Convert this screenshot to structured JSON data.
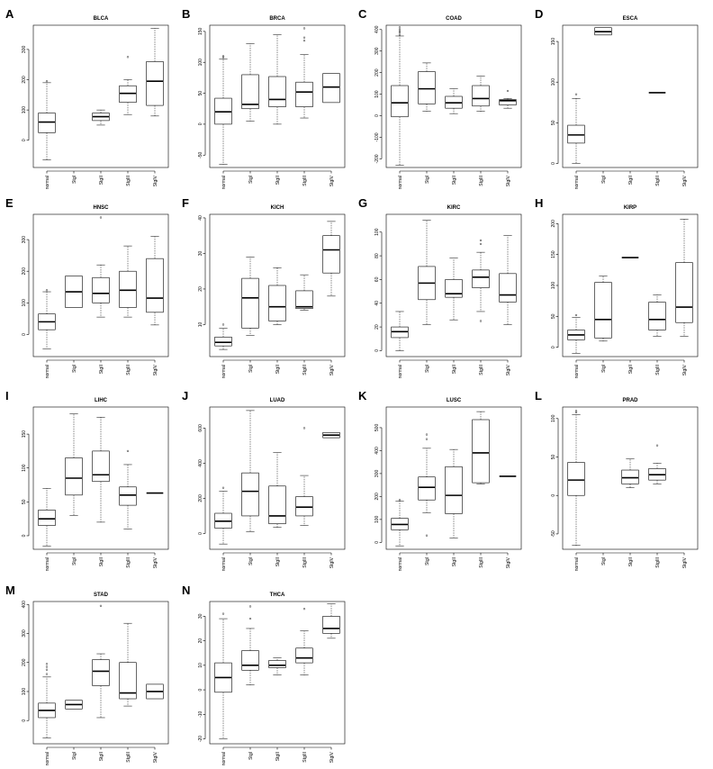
{
  "chart_data": [
    {
      "type": "box",
      "letter": "A",
      "title": "BLCA",
      "categories": [
        "normal",
        "StgI",
        "StgII",
        "StgIII",
        "StgIV"
      ],
      "ylim": [
        -90,
        380
      ],
      "yticks": [
        0,
        100,
        200,
        300
      ],
      "boxes": [
        {
          "min": -65,
          "q1": 25,
          "median": 60,
          "q3": 90,
          "max": 190,
          "outliers": [
            195
          ]
        },
        null,
        {
          "min": 50,
          "q1": 65,
          "median": 78,
          "q3": 90,
          "max": 100,
          "outliers": []
        },
        {
          "min": 85,
          "q1": 125,
          "median": 155,
          "q3": 180,
          "max": 200,
          "outliers": [
            275
          ]
        },
        {
          "min": 80,
          "q1": 115,
          "median": 195,
          "q3": 260,
          "max": 370,
          "outliers": []
        }
      ]
    },
    {
      "type": "box",
      "letter": "B",
      "title": "BRCA",
      "categories": [
        "normal",
        "StgI",
        "StgII",
        "StgIII",
        "StgIV"
      ],
      "ylim": [
        -70,
        160
      ],
      "yticks": [
        -50,
        0,
        50,
        100,
        150
      ],
      "boxes": [
        {
          "min": -65,
          "q1": 0,
          "median": 20,
          "q3": 42,
          "max": 105,
          "outliers": [
            108,
            110
          ]
        },
        {
          "min": 5,
          "q1": 25,
          "median": 32,
          "q3": 80,
          "max": 130,
          "outliers": []
        },
        {
          "min": 0,
          "q1": 28,
          "median": 40,
          "q3": 77,
          "max": 145,
          "outliers": []
        },
        {
          "min": 10,
          "q1": 28,
          "median": 52,
          "q3": 68,
          "max": 113,
          "outliers": [
            135,
            140,
            155
          ]
        },
        {
          "min": 35,
          "q1": 35,
          "median": 60,
          "q3": 82,
          "max": 82,
          "outliers": []
        }
      ]
    },
    {
      "type": "box",
      "letter": "C",
      "title": "COAD",
      "categories": [
        "normal",
        "StgI",
        "StgII",
        "StgIII",
        "StgIV"
      ],
      "ylim": [
        -240,
        420
      ],
      "yticks": [
        -200,
        -100,
        0,
        100,
        200,
        300,
        400
      ],
      "boxes": [
        {
          "min": -230,
          "q1": -5,
          "median": 60,
          "q3": 140,
          "max": 370,
          "outliers": [
            375,
            385,
            392,
            400,
            410
          ]
        },
        {
          "min": 20,
          "q1": 55,
          "median": 125,
          "q3": 205,
          "max": 245,
          "outliers": []
        },
        {
          "min": 10,
          "q1": 35,
          "median": 60,
          "q3": 90,
          "max": 125,
          "outliers": []
        },
        {
          "min": 20,
          "q1": 45,
          "median": 80,
          "q3": 140,
          "max": 185,
          "outliers": []
        },
        {
          "min": 35,
          "q1": 50,
          "median": 70,
          "q3": 75,
          "max": 80,
          "outliers": [
            115
          ]
        }
      ]
    },
    {
      "type": "box",
      "letter": "D",
      "title": "ESCA",
      "categories": [
        "normal",
        "StgI",
        "StgII",
        "StgIII",
        "StgIV"
      ],
      "ylim": [
        -5,
        170
      ],
      "yticks": [
        0,
        50,
        100,
        150
      ],
      "boxes": [
        {
          "min": 0,
          "q1": 25,
          "median": 35,
          "q3": 47,
          "max": 80,
          "outliers": [
            85
          ]
        },
        {
          "min": 158,
          "q1": 158,
          "median": 162,
          "q3": 167,
          "max": 167,
          "outliers": []
        },
        null,
        {
          "min": 87,
          "q1": 87,
          "median": 87,
          "q3": 87,
          "max": 87,
          "outliers": []
        },
        null
      ]
    },
    {
      "type": "box",
      "letter": "E",
      "title": "HNSC",
      "categories": [
        "normal",
        "StgI",
        "StgII",
        "StgIII",
        "StgIV"
      ],
      "ylim": [
        -70,
        380
      ],
      "yticks": [
        0,
        100,
        200,
        300
      ],
      "boxes": [
        {
          "min": -45,
          "q1": 15,
          "median": 40,
          "q3": 65,
          "max": 135,
          "outliers": [
            140
          ]
        },
        {
          "min": 85,
          "q1": 85,
          "median": 135,
          "q3": 185,
          "max": 185,
          "outliers": []
        },
        {
          "min": 55,
          "q1": 100,
          "median": 130,
          "q3": 180,
          "max": 220,
          "outliers": [
            370
          ]
        },
        {
          "min": 55,
          "q1": 85,
          "median": 140,
          "q3": 200,
          "max": 280,
          "outliers": []
        },
        {
          "min": 30,
          "q1": 70,
          "median": 115,
          "q3": 240,
          "max": 310,
          "outliers": []
        }
      ]
    },
    {
      "type": "box",
      "letter": "F",
      "title": "KICH",
      "categories": [
        "normal",
        "StgI",
        "StgII",
        "StgIII",
        "StgIV"
      ],
      "ylim": [
        1,
        41
      ],
      "yticks": [
        10,
        20,
        30,
        40
      ],
      "boxes": [
        {
          "min": 3,
          "q1": 4,
          "median": 5,
          "q3": 6.5,
          "max": 9,
          "outliers": [
            10
          ]
        },
        {
          "min": 7,
          "q1": 9,
          "median": 17.5,
          "q3": 23,
          "max": 29,
          "outliers": []
        },
        {
          "min": 10,
          "q1": 11,
          "median": 15,
          "q3": 21,
          "max": 26,
          "outliers": []
        },
        {
          "min": 14,
          "q1": 14.5,
          "median": 15,
          "q3": 19.5,
          "max": 24,
          "outliers": []
        },
        {
          "min": 18,
          "q1": 24.5,
          "median": 31,
          "q3": 35,
          "max": 39,
          "outliers": []
        }
      ]
    },
    {
      "type": "box",
      "letter": "G",
      "title": "KIRC",
      "categories": [
        "normal",
        "StgI",
        "StgII",
        "StgIII",
        "StgIV"
      ],
      "ylim": [
        -5,
        115
      ],
      "yticks": [
        0,
        20,
        40,
        60,
        80,
        100
      ],
      "boxes": [
        {
          "min": 0,
          "q1": 11,
          "median": 16,
          "q3": 20,
          "max": 33,
          "outliers": []
        },
        {
          "min": 22,
          "q1": 43,
          "median": 57,
          "q3": 71,
          "max": 110,
          "outliers": []
        },
        {
          "min": 26,
          "q1": 45,
          "median": 48,
          "q3": 60,
          "max": 78,
          "outliers": []
        },
        {
          "min": 33,
          "q1": 53,
          "median": 62,
          "q3": 68,
          "max": 83,
          "outliers": [
            90,
            93,
            25
          ]
        },
        {
          "min": 22,
          "q1": 41,
          "median": 47,
          "q3": 65,
          "max": 97,
          "outliers": []
        }
      ]
    },
    {
      "type": "box",
      "letter": "H",
      "title": "KIRP",
      "categories": [
        "normal",
        "StgI",
        "StgII",
        "StgIII",
        "StgIV"
      ],
      "ylim": [
        -15,
        215
      ],
      "yticks": [
        0,
        50,
        100,
        150,
        200
      ],
      "boxes": [
        {
          "min": -10,
          "q1": 12,
          "median": 20,
          "q3": 28,
          "max": 48,
          "outliers": [
            52
          ]
        },
        {
          "min": 10,
          "q1": 15,
          "median": 45,
          "q3": 105,
          "max": 115,
          "outliers": []
        },
        {
          "min": 145,
          "q1": 145,
          "median": 145,
          "q3": 145,
          "max": 145,
          "outliers": []
        },
        {
          "min": 18,
          "q1": 28,
          "median": 45,
          "q3": 73,
          "max": 85,
          "outliers": []
        },
        {
          "min": 18,
          "q1": 40,
          "median": 65,
          "q3": 137,
          "max": 207,
          "outliers": []
        }
      ]
    },
    {
      "type": "box",
      "letter": "I",
      "title": "LIHC",
      "categories": [
        "normal",
        "StgI",
        "StgII",
        "StgIII",
        "StgIV"
      ],
      "ylim": [
        -20,
        190
      ],
      "yticks": [
        0,
        50,
        100,
        150
      ],
      "boxes": [
        {
          "min": -15,
          "q1": 15,
          "median": 25,
          "q3": 38,
          "max": 70,
          "outliers": []
        },
        {
          "min": 30,
          "q1": 60,
          "median": 85,
          "q3": 115,
          "max": 180,
          "outliers": []
        },
        {
          "min": 20,
          "q1": 80,
          "median": 90,
          "q3": 125,
          "max": 175,
          "outliers": []
        },
        {
          "min": 10,
          "q1": 45,
          "median": 60,
          "q3": 72,
          "max": 105,
          "outliers": [
            125
          ]
        },
        {
          "min": 63,
          "q1": 63,
          "median": 63,
          "q3": 63,
          "max": 63,
          "outliers": []
        }
      ]
    },
    {
      "type": "box",
      "letter": "J",
      "title": "LUAD",
      "categories": [
        "normal",
        "StgI",
        "StgII",
        "StgIII",
        "StgIV"
      ],
      "ylim": [
        -90,
        720
      ],
      "yticks": [
        0,
        200,
        400,
        600
      ],
      "boxes": [
        {
          "min": -60,
          "q1": 30,
          "median": 70,
          "q3": 115,
          "max": 240,
          "outliers": [
            260
          ]
        },
        {
          "min": 10,
          "q1": 100,
          "median": 240,
          "q3": 345,
          "max": 700,
          "outliers": []
        },
        {
          "min": 35,
          "q1": 55,
          "median": 100,
          "q3": 270,
          "max": 460,
          "outliers": []
        },
        {
          "min": 45,
          "q1": 100,
          "median": 150,
          "q3": 210,
          "max": 330,
          "outliers": [
            600
          ]
        },
        {
          "min": 545,
          "q1": 545,
          "median": 560,
          "q3": 575,
          "max": 575,
          "outliers": []
        }
      ]
    },
    {
      "type": "box",
      "letter": "K",
      "title": "LUSC",
      "categories": [
        "normal",
        "StgI",
        "StgII",
        "StgIII",
        "StgIV"
      ],
      "ylim": [
        -30,
        590
      ],
      "yticks": [
        0,
        100,
        200,
        300,
        400,
        500
      ],
      "boxes": [
        {
          "min": -15,
          "q1": 55,
          "median": 78,
          "q3": 105,
          "max": 180,
          "outliers": [
            185
          ]
        },
        {
          "min": 130,
          "q1": 185,
          "median": 240,
          "q3": 285,
          "max": 410,
          "outliers": [
            30,
            450,
            470
          ]
        },
        {
          "min": 20,
          "q1": 125,
          "median": 205,
          "q3": 330,
          "max": 405,
          "outliers": []
        },
        {
          "min": 255,
          "q1": 260,
          "median": 390,
          "q3": 535,
          "max": 570,
          "outliers": []
        },
        {
          "min": 288,
          "q1": 288,
          "median": 288,
          "q3": 288,
          "max": 288,
          "outliers": []
        }
      ]
    },
    {
      "type": "box",
      "letter": "L",
      "title": "PRAD",
      "categories": [
        "normal",
        "StgI",
        "StgII",
        "StgIII",
        "StgIV"
      ],
      "ylim": [
        -70,
        115
      ],
      "yticks": [
        -50,
        0,
        50,
        100
      ],
      "boxes": [
        {
          "min": -65,
          "q1": 0,
          "median": 20,
          "q3": 43,
          "max": 105,
          "outliers": [
            108,
            110
          ]
        },
        null,
        {
          "min": 10,
          "q1": 15,
          "median": 23,
          "q3": 33,
          "max": 48,
          "outliers": []
        },
        {
          "min": 15,
          "q1": 20,
          "median": 27,
          "q3": 35,
          "max": 42,
          "outliers": [
            65
          ]
        },
        null
      ]
    },
    {
      "type": "box",
      "letter": "M",
      "title": "STAD",
      "categories": [
        "normal",
        "StgI",
        "StgII",
        "StgIII",
        "StgIV"
      ],
      "ylim": [
        -80,
        410
      ],
      "yticks": [
        0,
        100,
        200,
        300,
        400
      ],
      "boxes": [
        {
          "min": -60,
          "q1": 10,
          "median": 35,
          "q3": 60,
          "max": 150,
          "outliers": [
            160,
            175,
            185,
            195
          ]
        },
        {
          "min": 40,
          "q1": 40,
          "median": 55,
          "q3": 70,
          "max": 70,
          "outliers": []
        },
        {
          "min": 10,
          "q1": 120,
          "median": 170,
          "q3": 210,
          "max": 230,
          "outliers": [
            395
          ]
        },
        {
          "min": 50,
          "q1": 75,
          "median": 95,
          "q3": 200,
          "max": 335,
          "outliers": []
        },
        {
          "min": 75,
          "q1": 75,
          "median": 100,
          "q3": 125,
          "max": 125,
          "outliers": []
        }
      ]
    },
    {
      "type": "box",
      "letter": "N",
      "title": "THCA",
      "categories": [
        "normal",
        "StgI",
        "StgII",
        "StgIII",
        "StgIV"
      ],
      "ylim": [
        -22,
        36
      ],
      "yticks": [
        -20,
        -10,
        0,
        10,
        20,
        30
      ],
      "boxes": [
        {
          "min": -20,
          "q1": -1,
          "median": 5,
          "q3": 11,
          "max": 29,
          "outliers": [
            31
          ]
        },
        {
          "min": 2,
          "q1": 8,
          "median": 10,
          "q3": 16,
          "max": 25,
          "outliers": [
            29,
            34
          ]
        },
        {
          "min": 6,
          "q1": 9,
          "median": 10,
          "q3": 12,
          "max": 13,
          "outliers": []
        },
        {
          "min": 6,
          "q1": 11,
          "median": 13,
          "q3": 17,
          "max": 24,
          "outliers": [
            33
          ]
        },
        {
          "min": 21,
          "q1": 23,
          "median": 25,
          "q3": 30,
          "max": 35,
          "outliers": []
        }
      ]
    }
  ]
}
